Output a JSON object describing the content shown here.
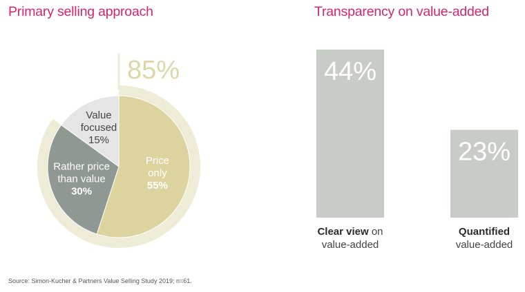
{
  "titles": {
    "left": "Primary selling approach",
    "right": "Transparency on value-added"
  },
  "colors": {
    "title": "#d8246e",
    "price_only": "#dcd39f",
    "rather_price": "#8f9893",
    "value_focused": "#e5e5e5",
    "ring": "#eeebd6",
    "bar": "#c8ccc7",
    "callout": "#ddd7a8"
  },
  "chart_data": [
    {
      "type": "pie",
      "title": "Primary selling approach",
      "slices": [
        {
          "label_lines": [
            "Price",
            "only"
          ],
          "value": 55,
          "value_text": "55%"
        },
        {
          "label_lines": [
            "Rather price",
            "than value"
          ],
          "value": 30,
          "value_text": "30%"
        },
        {
          "label_lines": [
            "Value",
            "focused"
          ],
          "value": 15,
          "value_text": "15%"
        }
      ],
      "highlight": {
        "text": "85%",
        "value": 85
      }
    },
    {
      "type": "bar",
      "title": "Transparency on value-added",
      "categories": [
        "Clear view on value-added",
        "Quantified value-added"
      ],
      "values": [
        44,
        23
      ],
      "value_labels": [
        "44%",
        "23%"
      ],
      "ylim": [
        0,
        44
      ]
    }
  ],
  "bar_labels": [
    {
      "bold": "Clear view",
      "rest": " on",
      "line2": "value-added"
    },
    {
      "bold": "Quantified",
      "rest": "",
      "line2": "value-added"
    }
  ],
  "source": "Source: Simon-Kucher & Partners Value Selling Study 2019; n=61."
}
